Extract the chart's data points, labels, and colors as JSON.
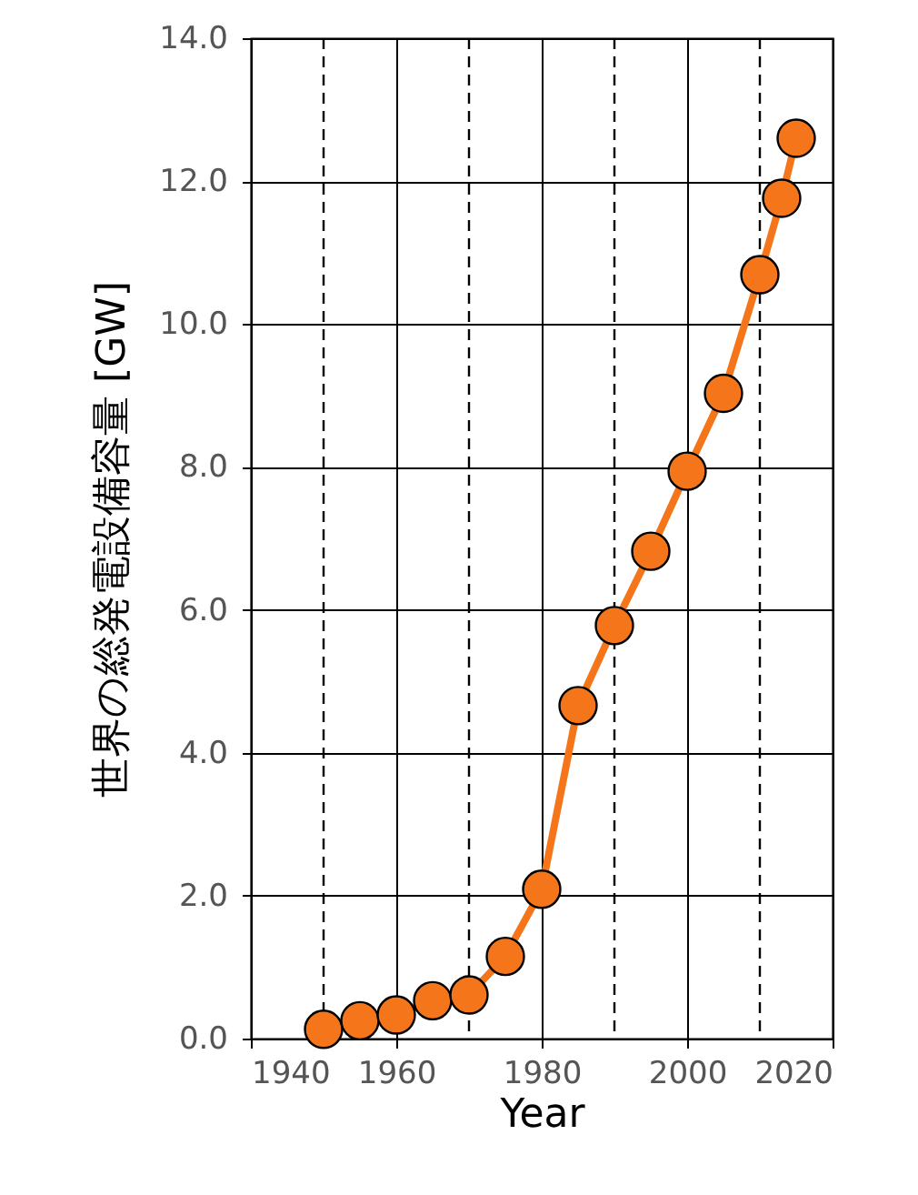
{
  "chart_data": {
    "type": "line",
    "xlabel": "Year",
    "ylabel": "世界の総発電設備容量 [GW]",
    "x": [
      1950,
      1955,
      1960,
      1965,
      1970,
      1975,
      1980,
      1985,
      1990,
      1995,
      2000,
      2005,
      2010,
      2013,
      2015
    ],
    "series": [
      {
        "color": "#f5761a",
        "values": [
          0.13,
          0.25,
          0.33,
          0.53,
          0.61,
          1.15,
          2.09,
          4.66,
          5.78,
          6.82,
          7.94,
          9.03,
          10.69,
          11.76,
          12.6
        ]
      }
    ],
    "xlim": [
      1940,
      2020
    ],
    "xticks": [
      1940,
      1960,
      1980,
      2000,
      2020
    ],
    "ylim": [
      0,
      14
    ],
    "yticks": [
      {
        "value": 0,
        "label": "0.0"
      },
      {
        "value": 2,
        "label": "2.0"
      },
      {
        "value": 4,
        "label": "4.0"
      },
      {
        "value": 6,
        "label": "6.0"
      },
      {
        "value": 8,
        "label": "8.0"
      },
      {
        "value": 10,
        "label": "10.0"
      },
      {
        "value": 12,
        "label": "12.0"
      },
      {
        "value": 14,
        "label": "14.0"
      }
    ],
    "ref_lines": [
      {
        "axis": "x",
        "value": 1950,
        "line_style": "dashed"
      },
      {
        "axis": "x",
        "value": 1970,
        "line_style": "dashed"
      },
      {
        "axis": "x",
        "value": 1990,
        "line_style": "dashed"
      },
      {
        "axis": "x",
        "value": 2010,
        "line_style": "dashed"
      }
    ],
    "grid": true,
    "marker": "circle",
    "line_style": "solid"
  }
}
